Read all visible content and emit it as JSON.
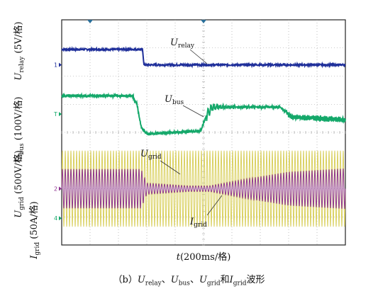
{
  "chart_data": {
    "type": "line",
    "title": "",
    "xlabel": {
      "var": "t",
      "rest": "(200ms/格)"
    },
    "ylabels": [
      {
        "var": "U",
        "sub": "relay",
        "rest": "(5V/格)"
      },
      {
        "var": "U",
        "sub": "bus",
        "rest": "(100V/格)"
      },
      {
        "var": "U",
        "sub": "grid",
        "rest": "(500V/格)"
      },
      {
        "var": "I",
        "sub": "grid",
        "rest": "(50A/格)"
      }
    ],
    "x_divisions": 10,
    "y_divisions": 8,
    "grid": true,
    "channel_markers": [
      "1",
      "T",
      "2",
      "4"
    ],
    "series": [
      {
        "name": "Urelay",
        "color": "#1f2f9a",
        "x": [
          0,
          2.85,
          2.9,
          10
        ],
        "y": [
          6.95,
          6.95,
          6.4,
          6.4
        ]
      },
      {
        "name": "Ubus",
        "color": "#14a86a",
        "x": [
          0,
          2.5,
          2.65,
          2.8,
          3.0,
          4.9,
          5.1,
          5.3,
          7.7,
          8.1,
          10
        ],
        "y": [
          5.3,
          5.3,
          5.0,
          4.2,
          3.95,
          4.05,
          4.6,
          4.9,
          4.9,
          4.55,
          4.45
        ]
      },
      {
        "name": "Ugrid",
        "color": "#d8cf5a",
        "x": [
          0,
          10
        ],
        "amplitude": [
          1.35,
          1.35
        ],
        "offset": [
          2.0,
          2.0
        ]
      },
      {
        "name": "Igrid",
        "color": "#8b2f8e",
        "x": [
          0,
          2.8,
          3.0,
          4.5,
          5.2,
          6.5,
          8.0,
          10
        ],
        "amplitude": [
          0.7,
          0.7,
          0.2,
          0.1,
          0.1,
          0.35,
          0.6,
          0.72
        ],
        "offset": [
          2.0,
          2.0,
          2.0,
          2.0,
          2.0,
          2.0,
          2.0,
          2.0
        ]
      }
    ],
    "annotations": [
      {
        "var": "U",
        "sub": "relay"
      },
      {
        "var": "U",
        "sub": "bus"
      },
      {
        "var": "U",
        "sub": "grid"
      },
      {
        "var": "I",
        "sub": "grid"
      }
    ]
  },
  "caption": {
    "prefix": "（b）",
    "parts": [
      {
        "var": "U",
        "sub": "relay",
        "after": "、"
      },
      {
        "var": "U",
        "sub": "bus",
        "after": "、"
      },
      {
        "var": "U",
        "sub": "grid",
        "after": "和"
      },
      {
        "var": "I",
        "sub": "grid",
        "after": "波形"
      }
    ]
  }
}
